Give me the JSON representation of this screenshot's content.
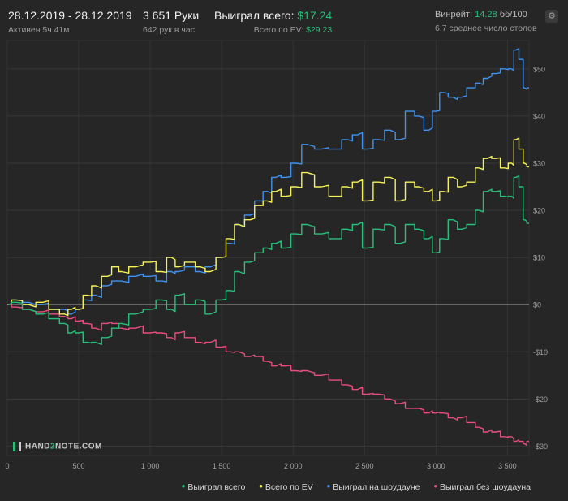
{
  "header": {
    "date_range": "28.12.2019 - 28.12.2019",
    "active": "Активен 5ч 41м",
    "hands": "3 651 Руки",
    "hands_per_hour": "642 рук в час",
    "won_total_label": "Выиграл всего:",
    "won_total_value": "$17.24",
    "ev_total_label": "Всего по EV:",
    "ev_total_value": "$29.23",
    "winrate_label": "Винрейт:",
    "winrate_value": "14.28",
    "winrate_unit": "бб/100",
    "tables": "6.7 среднее число столов",
    "settings_icon": "gear-icon"
  },
  "logo": {
    "text_a": "HAND",
    "text_b": "2",
    "text_c": "NOTE.COM"
  },
  "legend": {
    "total": "Выиграл всего",
    "ev": "Всего по EV",
    "showdown": "Выиграл на шоудауне",
    "non_showdown": "Выиграл без шоудауна"
  },
  "colors": {
    "total": "#27c07a",
    "ev": "#f5f25a",
    "showdown": "#3f92f0",
    "non_showdown": "#e84e7e"
  },
  "chart_data": {
    "type": "line",
    "xlabel": "",
    "ylabel": "",
    "xlim": [
      0,
      3651
    ],
    "ylim": [
      -32,
      56
    ],
    "x_ticks": [
      0,
      500,
      1000,
      1500,
      2000,
      2500,
      3000,
      3500
    ],
    "x_tick_labels": [
      "0",
      "500",
      "1 000",
      "1 500",
      "2 000",
      "2 500",
      "3 000",
      "3 500"
    ],
    "y_ticks": [
      50,
      40,
      30,
      20,
      10,
      0,
      -10,
      -20,
      -30
    ],
    "y_tick_labels": [
      "$50",
      "$40",
      "$30",
      "$20",
      "$10",
      "$0",
      "-$10",
      "-$20",
      "-$30"
    ],
    "grid": true,
    "series": [
      {
        "name": "Выиграл всего",
        "x": [
          0,
          60,
          150,
          250,
          330,
          400,
          450,
          500,
          560,
          620,
          700,
          760,
          800,
          900,
          1000,
          1080,
          1150,
          1200,
          1280,
          1350,
          1420,
          1500,
          1560,
          1620,
          1700,
          1760,
          1820,
          1880,
          1950,
          2020,
          2100,
          2200,
          2300,
          2380,
          2450,
          2520,
          2600,
          2680,
          2750,
          2820,
          2880,
          2950,
          3000,
          3050,
          3120,
          3180,
          3250,
          3300,
          3360,
          3420,
          3480,
          3530,
          3560,
          3600,
          3620,
          3651
        ],
        "y": [
          0,
          0.5,
          -1,
          -2,
          -3,
          -4,
          -6,
          -6,
          -8,
          -8,
          -7,
          -5,
          -4,
          -2,
          -1,
          1,
          -1,
          2,
          0,
          1,
          -2,
          1,
          3,
          7,
          9,
          11,
          12,
          13,
          12,
          15,
          17,
          15,
          14,
          16,
          17,
          12,
          16,
          17,
          13,
          17,
          16,
          14,
          11,
          14,
          18,
          16,
          17,
          20,
          24,
          24,
          23,
          23,
          27,
          25,
          18,
          17.24
        ]
      },
      {
        "name": "Всего по EV",
        "x": [
          0,
          60,
          150,
          250,
          330,
          400,
          450,
          500,
          560,
          620,
          700,
          760,
          800,
          900,
          1000,
          1080,
          1150,
          1200,
          1280,
          1350,
          1420,
          1500,
          1560,
          1620,
          1700,
          1760,
          1820,
          1880,
          1950,
          2020,
          2100,
          2200,
          2300,
          2380,
          2450,
          2520,
          2600,
          2680,
          2750,
          2820,
          2880,
          2950,
          3000,
          3050,
          3120,
          3180,
          3250,
          3300,
          3360,
          3420,
          3480,
          3530,
          3560,
          3600,
          3620,
          3651
        ],
        "y": [
          0,
          1,
          0,
          0.5,
          -1,
          -2,
          -1,
          -1,
          2,
          4,
          6,
          8,
          7,
          8,
          9,
          7,
          10,
          8,
          9,
          8,
          7,
          10,
          14,
          17,
          18,
          21,
          22,
          24,
          23,
          25,
          28,
          25,
          23,
          25,
          26,
          22,
          26,
          27,
          22,
          26,
          25,
          24,
          22,
          24,
          27,
          25,
          26,
          29,
          31,
          31,
          29,
          30,
          35,
          33,
          30,
          29.23
        ]
      },
      {
        "name": "Выиграл на шоудауне",
        "x": [
          0,
          60,
          150,
          250,
          330,
          400,
          450,
          500,
          560,
          620,
          700,
          760,
          800,
          900,
          1000,
          1080,
          1150,
          1200,
          1280,
          1350,
          1420,
          1500,
          1560,
          1620,
          1700,
          1760,
          1820,
          1880,
          1950,
          2020,
          2100,
          2200,
          2300,
          2380,
          2450,
          2520,
          2600,
          2680,
          2750,
          2820,
          2880,
          2950,
          3000,
          3050,
          3120,
          3180,
          3250,
          3300,
          3360,
          3420,
          3480,
          3530,
          3560,
          3600,
          3620,
          3651
        ],
        "y": [
          0,
          1,
          0.5,
          0,
          -1,
          -1,
          -2,
          -1,
          1,
          2,
          4,
          5,
          5,
          6,
          6,
          5,
          7,
          7,
          8,
          7,
          8,
          10,
          13,
          17,
          19,
          22,
          24,
          27,
          27,
          30,
          34,
          33,
          33,
          35,
          36,
          33,
          35,
          37,
          35,
          41,
          40,
          37,
          41,
          45,
          44,
          44,
          46,
          47,
          48,
          49,
          50,
          50,
          54,
          52,
          46,
          46
        ]
      },
      {
        "name": "Выиграл без шоудауна",
        "x": [
          0,
          60,
          150,
          250,
          330,
          400,
          450,
          500,
          560,
          620,
          700,
          760,
          800,
          900,
          1000,
          1080,
          1150,
          1200,
          1280,
          1350,
          1420,
          1500,
          1560,
          1620,
          1700,
          1760,
          1820,
          1880,
          1950,
          2020,
          2100,
          2200,
          2300,
          2380,
          2450,
          2520,
          2600,
          2680,
          2750,
          2820,
          2880,
          2950,
          3000,
          3050,
          3120,
          3180,
          3250,
          3300,
          3360,
          3420,
          3480,
          3530,
          3560,
          3600,
          3620,
          3651
        ],
        "y": [
          0,
          -0.5,
          -1,
          -1.5,
          -2,
          -2.5,
          -3,
          -3.5,
          -4,
          -5,
          -4,
          -4,
          -5,
          -5,
          -6,
          -6,
          -7,
          -6,
          -7,
          -8,
          -8,
          -9,
          -10,
          -10,
          -11,
          -11,
          -12,
          -13,
          -13,
          -14,
          -14,
          -15,
          -16,
          -17,
          -18,
          -19,
          -19,
          -20,
          -21,
          -22,
          -22,
          -23,
          -23,
          -23,
          -24,
          -24,
          -25,
          -26,
          -27,
          -27,
          -28,
          -28,
          -29,
          -29,
          -29.5,
          -29
        ]
      }
    ]
  }
}
